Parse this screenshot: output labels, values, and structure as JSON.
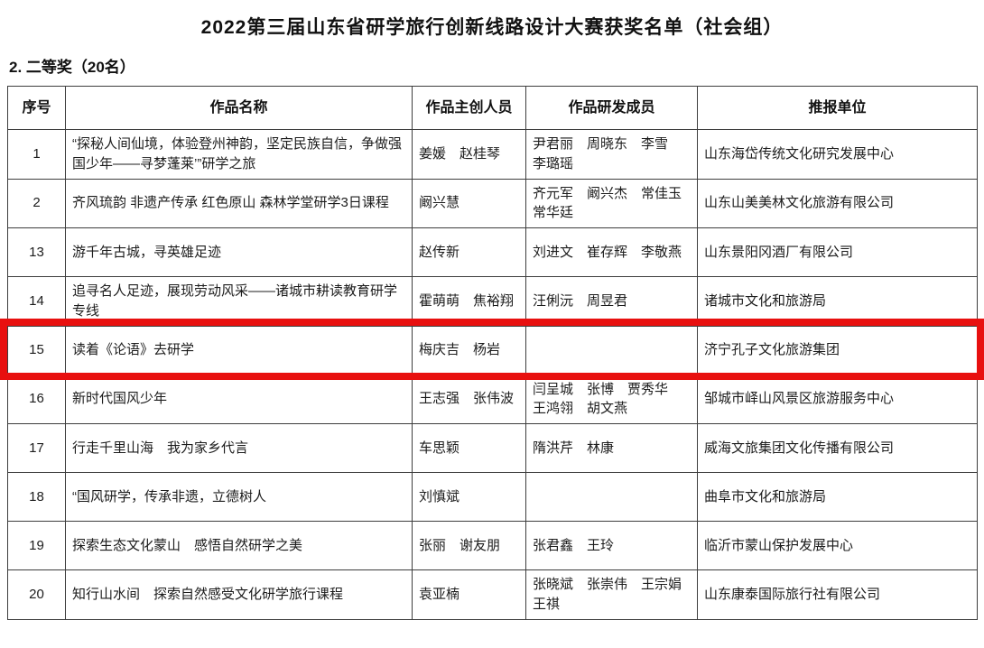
{
  "page": {
    "title": "2022第三届山东省研学旅行创新线路设计大赛获奖名单（社会组）",
    "section_label": "2. 二等奖（20名）"
  },
  "table": {
    "columns": [
      "序号",
      "作品名称",
      "作品主创人员",
      "作品研发成员",
      "推报单位"
    ],
    "rows": [
      {
        "no": "1",
        "work": "“探秘人间仙境，体验登州神韵，坚定民族自信，争做强国少年——寻梦蓬莱’”研学之旅",
        "creators": "姜媛　赵桂琴",
        "members": "尹君丽　周晓东　李雪　李璐瑶",
        "unit": "山东海岱传统文化研究发展中心",
        "highlighted": false
      },
      {
        "no": "2",
        "work": "齐风琉韵 非遗产传承 红色原山 森林学堂研学3日课程",
        "creators": "阚兴慧",
        "members": "齐元军　阚兴杰　常佳玉　常华廷",
        "unit": "山东山美美林文化旅游有限公司",
        "highlighted": false
      },
      {
        "no": "13",
        "work": "游千年古城，寻英雄足迹",
        "creators": "赵传新",
        "members": "刘进文　崔存辉　李敬燕",
        "unit": "山东景阳冈酒厂有限公司",
        "highlighted": false
      },
      {
        "no": "14",
        "work": "追寻名人足迹，展现劳动风采——诸城市耕读教育研学专线",
        "creators": "霍萌萌　焦裕翔",
        "members": "汪俐沅　周昱君",
        "unit": "诸城市文化和旅游局",
        "highlighted": false
      },
      {
        "no": "15",
        "work": "读着《论语》去研学",
        "creators": "梅庆吉　杨岩",
        "members": "",
        "unit": "济宁孔子文化旅游集团",
        "highlighted": true
      },
      {
        "no": "16",
        "work": "新时代国风少年",
        "creators": "王志强　张伟波",
        "members": "闫呈城　张博　贾秀华　王鸿翎　胡文燕",
        "unit": "邹城市峄山风景区旅游服务中心",
        "highlighted": false
      },
      {
        "no": "17",
        "work": "行走千里山海　我为家乡代言",
        "creators": "车思颖",
        "members": "隋洪芹　林康",
        "unit": "威海文旅集团文化传播有限公司",
        "highlighted": false
      },
      {
        "no": "18",
        "work": "“国风研学，传承非遗，立德树人",
        "creators": "刘慎斌",
        "members": "",
        "unit": "曲阜市文化和旅游局",
        "highlighted": false
      },
      {
        "no": "19",
        "work": "探索生态文化蒙山　感悟自然研学之美",
        "creators": "张丽　谢友朋",
        "members": "张君鑫　王玲",
        "unit": "临沂市蒙山保护发展中心",
        "highlighted": false
      },
      {
        "no": "20",
        "work": "知行山水间　探索自然感受文化研学旅行课程",
        "creators": "袁亚楠",
        "members": "张晓斌　张崇伟　王宗娟　王祺",
        "unit": "山东康泰国际旅行社有限公司",
        "highlighted": false
      }
    ]
  },
  "highlight": {
    "row_no": "15",
    "color": "#e8100f"
  }
}
